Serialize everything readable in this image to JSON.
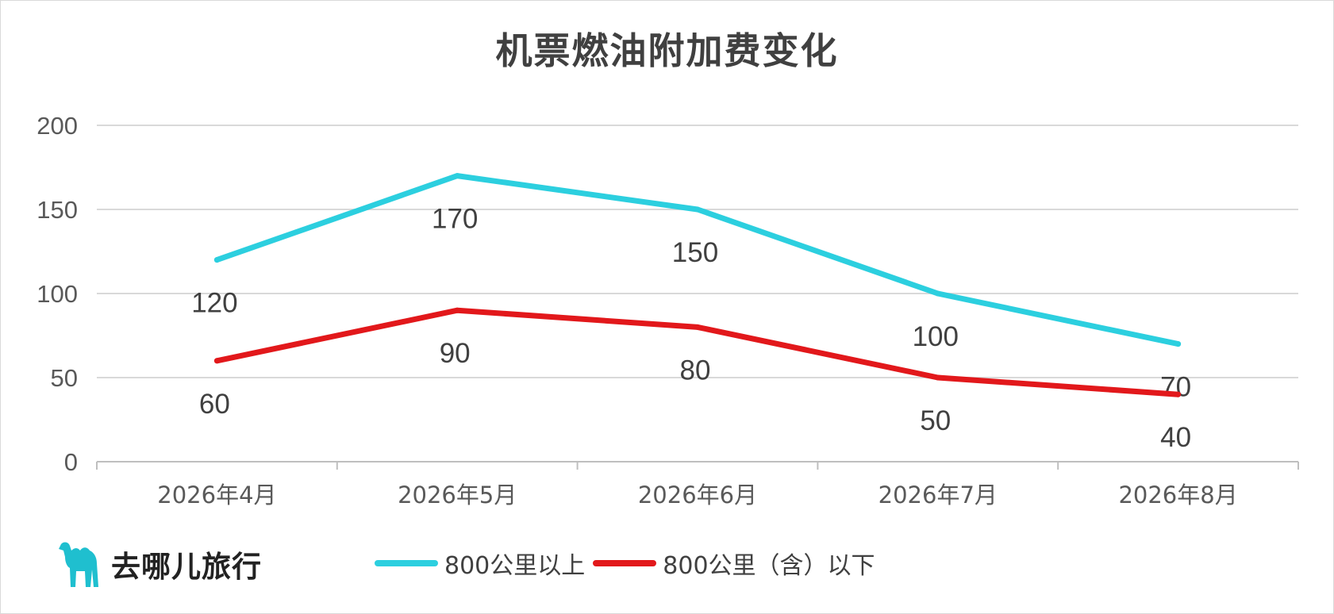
{
  "brand": {
    "name": "去哪儿旅行",
    "logo_icon": "camel-icon",
    "color": "#1fbfcf"
  },
  "chart_data": {
    "type": "line",
    "title": "机票燃油附加费变化",
    "categories": [
      "2026年4月",
      "2026年5月",
      "2026年6月",
      "2026年7月",
      "2026年8月"
    ],
    "ylim": [
      0,
      200
    ],
    "yticks": [
      0,
      50,
      100,
      150,
      200
    ],
    "grid": true,
    "legend_position": "bottom",
    "series": [
      {
        "name": "800公里以上",
        "color": "#2ccfdf",
        "values": [
          120,
          170,
          150,
          100,
          70
        ]
      },
      {
        "name": "800公里（含）以下",
        "color": "#e2181b",
        "values": [
          60,
          90,
          80,
          50,
          40
        ]
      }
    ]
  }
}
